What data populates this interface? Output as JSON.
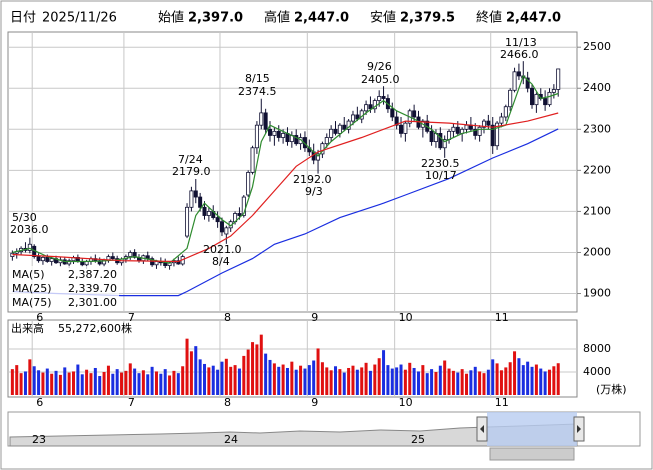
{
  "header": {
    "date_label": "日付",
    "date": "2025/11/26",
    "items": [
      {
        "label": "始値",
        "value": "2,397.0",
        "color": "#000000"
      },
      {
        "label": "高値",
        "value": "2,447.0",
        "color": "#e00000"
      },
      {
        "label": "安値",
        "value": "2,379.5",
        "color": "#009900"
      },
      {
        "label": "終値",
        "value": "2,447.0",
        "color": "#000000"
      }
    ]
  },
  "chart_data": {
    "type": "candlestick",
    "up_color": "#ffffff",
    "down_color": "#111133",
    "edge_color": "#111133",
    "xlim": [
      -1,
      129.3
    ],
    "ylim": [
      1855,
      2537
    ],
    "yticks": [
      1900,
      2000,
      2100,
      2200,
      2300,
      2400,
      2500
    ],
    "grid": true,
    "xticks": [
      {
        "value": 5,
        "label": "6"
      },
      {
        "value": 26,
        "label": "7"
      },
      {
        "value": 48,
        "label": "8"
      },
      {
        "value": 68,
        "label": "9"
      },
      {
        "value": 88,
        "label": "10"
      },
      {
        "value": 110,
        "label": "11"
      }
    ],
    "candles": [
      [
        1990,
        2005,
        1980,
        1998
      ],
      [
        1998,
        2010,
        1985,
        2002
      ],
      [
        2002,
        2015,
        1995,
        2010
      ],
      [
        2010,
        2025,
        2000,
        2005
      ],
      [
        2005,
        2036,
        1998,
        2020
      ],
      [
        2015,
        2020,
        1985,
        1990
      ],
      [
        1990,
        1998,
        1975,
        1980
      ],
      [
        1980,
        1992,
        1970,
        1988
      ],
      [
        1988,
        1995,
        1975,
        1978
      ],
      [
        1978,
        1990,
        1968,
        1985
      ],
      [
        1985,
        1992,
        1972,
        1975
      ],
      [
        1975,
        1988,
        1965,
        1982
      ],
      [
        1982,
        1990,
        1970,
        1972
      ],
      [
        1972,
        1985,
        1962,
        1980
      ],
      [
        1980,
        1992,
        1972,
        1988
      ],
      [
        1988,
        1995,
        1975,
        1978
      ],
      [
        1978,
        1986,
        1965,
        1970
      ],
      [
        1970,
        1982,
        1960,
        1978
      ],
      [
        1978,
        1990,
        1970,
        1985
      ],
      [
        1985,
        1995,
        1975,
        1980
      ],
      [
        1980,
        1988,
        1968,
        1972
      ],
      [
        1972,
        1985,
        1965,
        1982
      ],
      [
        1982,
        1995,
        1975,
        1990
      ],
      [
        1990,
        2000,
        1980,
        1985
      ],
      [
        1985,
        1992,
        1970,
        1975
      ],
      [
        1975,
        1988,
        1968,
        1984
      ],
      [
        1984,
        1995,
        1975,
        1990
      ],
      [
        1990,
        2005,
        1982,
        2000
      ],
      [
        2000,
        2008,
        1985,
        1988
      ],
      [
        1988,
        1996,
        1975,
        1980
      ],
      [
        1980,
        1995,
        1972,
        1992
      ],
      [
        1992,
        2002,
        1980,
        1985
      ],
      [
        1985,
        1990,
        1965,
        1970
      ],
      [
        1970,
        1982,
        1960,
        1978
      ],
      [
        1978,
        1988,
        1968,
        1975
      ],
      [
        1975,
        1985,
        1962,
        1968
      ],
      [
        1968,
        1978,
        1958,
        1975
      ],
      [
        1975,
        1985,
        1966,
        1980
      ],
      [
        1980,
        1990,
        1970,
        1972
      ],
      [
        1972,
        1995,
        1968,
        1990
      ],
      [
        2040,
        2120,
        2035,
        2110
      ],
      [
        2110,
        2160,
        2100,
        2150
      ],
      [
        2150,
        2179,
        2120,
        2135
      ],
      [
        2135,
        2145,
        2100,
        2110
      ],
      [
        2110,
        2125,
        2080,
        2090
      ],
      [
        2090,
        2110,
        2075,
        2100
      ],
      [
        2100,
        2115,
        2080,
        2085
      ],
      [
        2085,
        2100,
        2060,
        2075
      ],
      [
        2075,
        2085,
        2040,
        2050
      ],
      [
        2045,
        2065,
        2021,
        2060
      ],
      [
        2060,
        2080,
        2050,
        2075
      ],
      [
        2075,
        2100,
        2068,
        2095
      ],
      [
        2095,
        2110,
        2080,
        2090
      ],
      [
        2090,
        2140,
        2085,
        2135
      ],
      [
        2140,
        2200,
        2135,
        2195
      ],
      [
        2195,
        2260,
        2190,
        2255
      ],
      [
        2255,
        2320,
        2240,
        2310
      ],
      [
        2310,
        2374.5,
        2300,
        2340
      ],
      [
        2340,
        2350,
        2290,
        2300
      ],
      [
        2300,
        2320,
        2270,
        2285
      ],
      [
        2285,
        2305,
        2260,
        2295
      ],
      [
        2295,
        2310,
        2270,
        2280
      ],
      [
        2280,
        2300,
        2265,
        2290
      ],
      [
        2290,
        2305,
        2260,
        2270
      ],
      [
        2270,
        2295,
        2255,
        2285
      ],
      [
        2285,
        2300,
        2260,
        2265
      ],
      [
        2265,
        2290,
        2250,
        2280
      ],
      [
        2280,
        2295,
        2245,
        2255
      ],
      [
        2255,
        2275,
        2235,
        2245
      ],
      [
        2245,
        2265,
        2215,
        2225
      ],
      [
        2225,
        2250,
        2192,
        2240
      ],
      [
        2240,
        2270,
        2230,
        2265
      ],
      [
        2265,
        2290,
        2255,
        2280
      ],
      [
        2280,
        2310,
        2270,
        2300
      ],
      [
        2300,
        2320,
        2285,
        2290
      ],
      [
        2290,
        2315,
        2280,
        2310
      ],
      [
        2310,
        2330,
        2295,
        2300
      ],
      [
        2300,
        2325,
        2290,
        2320
      ],
      [
        2320,
        2345,
        2310,
        2335
      ],
      [
        2335,
        2355,
        2320,
        2325
      ],
      [
        2325,
        2350,
        2315,
        2345
      ],
      [
        2345,
        2370,
        2335,
        2360
      ],
      [
        2360,
        2380,
        2340,
        2350
      ],
      [
        2350,
        2375,
        2340,
        2370
      ],
      [
        2370,
        2395,
        2355,
        2380
      ],
      [
        2380,
        2405,
        2360,
        2375
      ],
      [
        2375,
        2385,
        2340,
        2350
      ],
      [
        2350,
        2365,
        2320,
        2330
      ],
      [
        2330,
        2345,
        2300,
        2310
      ],
      [
        2310,
        2330,
        2280,
        2290
      ],
      [
        2290,
        2320,
        2270,
        2315
      ],
      [
        2315,
        2350,
        2305,
        2345
      ],
      [
        2345,
        2360,
        2320,
        2330
      ],
      [
        2330,
        2345,
        2300,
        2305
      ],
      [
        2305,
        2325,
        2280,
        2320
      ],
      [
        2320,
        2335,
        2290,
        2295
      ],
      [
        2295,
        2310,
        2260,
        2270
      ],
      [
        2270,
        2300,
        2255,
        2290
      ],
      [
        2290,
        2305,
        2250,
        2255
      ],
      [
        2255,
        2285,
        2230.5,
        2275
      ],
      [
        2275,
        2300,
        2265,
        2295
      ],
      [
        2295,
        2315,
        2280,
        2305
      ],
      [
        2305,
        2320,
        2285,
        2290
      ],
      [
        2290,
        2305,
        2270,
        2300
      ],
      [
        2300,
        2320,
        2290,
        2310
      ],
      [
        2310,
        2330,
        2295,
        2300
      ],
      [
        2300,
        2315,
        2275,
        2285
      ],
      [
        2285,
        2310,
        2270,
        2305
      ],
      [
        2305,
        2325,
        2290,
        2320
      ],
      [
        2320,
        2335,
        2300,
        2310
      ],
      [
        2310,
        2330,
        2240,
        2260
      ],
      [
        2260,
        2320,
        2250,
        2315
      ],
      [
        2315,
        2340,
        2305,
        2330
      ],
      [
        2330,
        2360,
        2320,
        2355
      ],
      [
        2355,
        2400,
        2345,
        2395
      ],
      [
        2395,
        2450,
        2390,
        2440
      ],
      [
        2440,
        2460,
        2420,
        2430
      ],
      [
        2430,
        2466,
        2410,
        2425
      ],
      [
        2425,
        2440,
        2390,
        2400
      ],
      [
        2400,
        2410,
        2350,
        2360
      ],
      [
        2360,
        2390,
        2340,
        2385
      ],
      [
        2385,
        2400,
        2370,
        2375
      ],
      [
        2375,
        2395,
        2345,
        2360
      ],
      [
        2360,
        2400,
        2355,
        2390
      ],
      [
        2390,
        2410,
        2375,
        2397
      ],
      [
        2397,
        2447,
        2379.5,
        2447
      ]
    ],
    "ma": [
      {
        "name": "MA(5)",
        "color": "#2e8b2e",
        "value_label": "2,387.20",
        "x": [
          0,
          4,
          8,
          12,
          16,
          20,
          24,
          28,
          32,
          36,
          40,
          42,
          44,
          46,
          48,
          50,
          53,
          55,
          57,
          59,
          62,
          66,
          70,
          73,
          77,
          81,
          85,
          88,
          92,
          96,
          99,
          103,
          107,
          110,
          113,
          115,
          117,
          119,
          121,
          123,
          125
        ],
        "values": [
          2000,
          2010,
          1990,
          1978,
          1978,
          1979,
          1982,
          1990,
          1982,
          1974,
          2010,
          2090,
          2120,
          2100,
          2080,
          2065,
          2095,
          2160,
          2270,
          2310,
          2295,
          2275,
          2235,
          2270,
          2305,
          2340,
          2370,
          2345,
          2325,
          2300,
          2270,
          2290,
          2300,
          2300,
          2310,
          2370,
          2430,
          2410,
          2375,
          2380,
          2387.2
        ]
      },
      {
        "name": "MA(25)",
        "color": "#e02020",
        "value_label": "2,339.70",
        "x": [
          0,
          10,
          25,
          38,
          45,
          50,
          55,
          60,
          65,
          70,
          80,
          90,
          100,
          110,
          118,
          125
        ],
        "values": [
          1995,
          1990,
          1980,
          1978,
          2010,
          2040,
          2090,
          2150,
          2210,
          2245,
          2280,
          2320,
          2315,
          2305,
          2320,
          2339.7
        ]
      },
      {
        "name": "MA(75)",
        "color": "#1a2ee0",
        "value_label": "2,301.00",
        "x": [
          0,
          10,
          25,
          38,
          40,
          48,
          55,
          60,
          67,
          75,
          85,
          90,
          100,
          110,
          118,
          125
        ],
        "values": [
          1905,
          1900,
          1895,
          1895,
          1905,
          1950,
          1985,
          2020,
          2045,
          2085,
          2120,
          2140,
          2180,
          2230,
          2265,
          2301
        ]
      }
    ],
    "annotations": [
      {
        "date": "5/30",
        "value": "2036.0"
      },
      {
        "date": "7/24",
        "value": "2179.0"
      },
      {
        "date": "8/15",
        "value": "2374.5"
      },
      {
        "date": "9/26",
        "value": "2405.0"
      },
      {
        "date": "11/13",
        "value": "2466.0"
      },
      {
        "date": "8/4",
        "value": "2021.0"
      },
      {
        "date": "9/3",
        "value": "2192.0"
      },
      {
        "date": "10/17",
        "value": "2230.5"
      }
    ],
    "volume": {
      "type": "bar",
      "label": "出来高",
      "total": "55,272,600株",
      "unit": "(万株)",
      "up_color": "#e01010",
      "down_color": "#1a2ee0",
      "ylim": [
        0,
        12700
      ],
      "yticks": [
        4000,
        8000
      ],
      "values": [
        4500,
        5200,
        3800,
        4100,
        6200,
        5000,
        4300,
        3900,
        4600,
        3700,
        4200,
        3500,
        4800,
        3900,
        4100,
        5300,
        3600,
        4400,
        3800,
        4700,
        3300,
        4000,
        5100,
        3700,
        4500,
        3900,
        4200,
        5500,
        4600,
        3800,
        4300,
        3600,
        4900,
        4100,
        3700,
        4500,
        3400,
        4200,
        3800,
        5000,
        9800,
        7600,
        8500,
        6200,
        5400,
        4800,
        5100,
        4400,
        5800,
        6300,
        4900,
        5200,
        4600,
        6800,
        7900,
        9200,
        8800,
        10500,
        7200,
        6100,
        5500,
        4900,
        5300,
        4700,
        5800,
        4400,
        5100,
        4600,
        5200,
        6000,
        8100,
        5700,
        4800,
        4300,
        5000,
        4500,
        3900,
        4700,
        5100,
        4400,
        4800,
        5600,
        4200,
        5300,
        6400,
        7800,
        5200,
        4600,
        4800,
        5300,
        4400,
        5600,
        4700,
        4100,
        5200,
        3800,
        4500,
        4000,
        5100,
        6000,
        4600,
        4200,
        3900,
        4500,
        3700,
        4300,
        4900,
        4100,
        3800,
        4400,
        6200,
        5500,
        4300,
        4800,
        5700,
        7600,
        6400,
        5200,
        5800,
        4900,
        5300,
        4600,
        4100,
        4400,
        5000,
        5527.26
      ]
    }
  },
  "navigator": {
    "labels": [
      "23",
      "24",
      "25"
    ]
  }
}
